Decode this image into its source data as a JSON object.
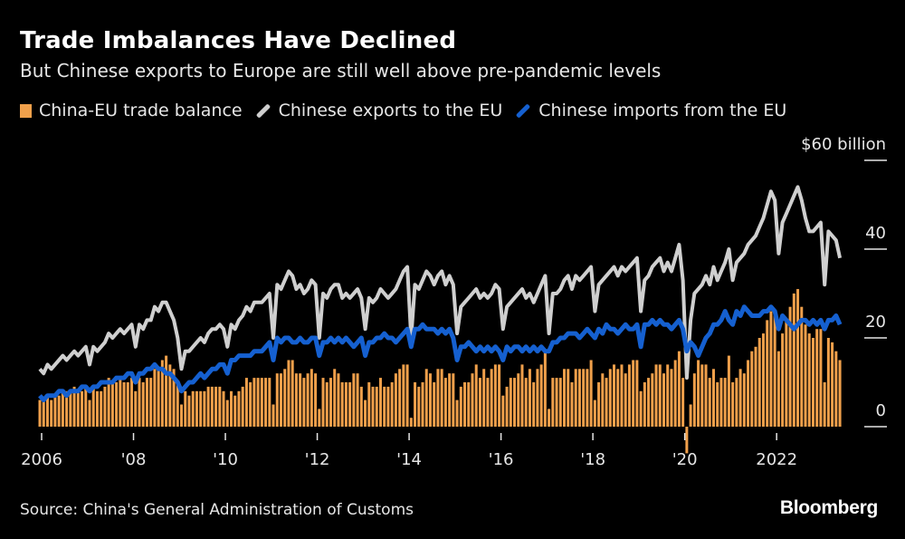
{
  "chart_data": {
    "type": "bar+line",
    "title": "Trade Imbalances Have Declined",
    "subtitle": "But Chinese exports to Europe are still well above pre-pandemic levels",
    "source": "Source: China's General Administration of Customs",
    "brand": "Bloomberg",
    "x_start": "2006-01",
    "x_end": "2023-06",
    "frequency": "monthly",
    "x_tick_labels": [
      "2006",
      "'08",
      "'10",
      "'12",
      "'14",
      "'16",
      "'18",
      "'20",
      "2022"
    ],
    "y_tick_labels": [
      "0",
      "20",
      "40",
      "$60 billion"
    ],
    "y_ticks": [
      0,
      20,
      40,
      60
    ],
    "ylim": [
      -6,
      60
    ],
    "y_axis_position": "right",
    "legend_position": "top",
    "series": [
      {
        "name": "China-EU trade balance",
        "type": "bar",
        "color": "#f0a04b",
        "values": [
          6,
          6,
          7,
          6,
          7,
          7,
          8,
          8,
          8,
          9,
          8,
          8,
          9,
          6,
          9,
          8,
          8,
          9,
          11,
          10,
          10,
          11,
          10,
          10,
          11,
          8,
          11,
          10,
          11,
          11,
          13,
          13,
          15,
          16,
          14,
          13,
          10,
          5,
          8,
          7,
          8,
          8,
          8,
          8,
          9,
          9,
          9,
          9,
          8,
          6,
          8,
          7,
          8,
          9,
          11,
          10,
          11,
          11,
          11,
          11,
          11,
          5,
          12,
          12,
          13,
          15,
          15,
          12,
          12,
          11,
          12,
          13,
          12,
          4,
          11,
          10,
          11,
          13,
          12,
          10,
          10,
          10,
          12,
          12,
          9,
          6,
          10,
          9,
          9,
          11,
          9,
          9,
          10,
          12,
          13,
          14,
          14,
          2,
          10,
          9,
          10,
          13,
          12,
          10,
          13,
          13,
          11,
          12,
          12,
          6,
          9,
          10,
          10,
          12,
          14,
          11,
          13,
          11,
          13,
          14,
          14,
          7,
          9,
          11,
          11,
          12,
          14,
          11,
          13,
          10,
          13,
          14,
          17,
          4,
          11,
          11,
          11,
          13,
          13,
          10,
          13,
          13,
          13,
          13,
          15,
          6,
          10,
          12,
          11,
          13,
          14,
          13,
          14,
          12,
          14,
          15,
          15,
          8,
          10,
          11,
          12,
          14,
          14,
          12,
          14,
          13,
          15,
          17,
          11,
          -6,
          5,
          12,
          15,
          14,
          14,
          11,
          13,
          10,
          11,
          11,
          16,
          10,
          11,
          13,
          12,
          15,
          17,
          18,
          20,
          21,
          24,
          26,
          25,
          17,
          21,
          24,
          27,
          30,
          31,
          27,
          23,
          21,
          20,
          22,
          22,
          10,
          20,
          19,
          17,
          15
        ]
      },
      {
        "name": "Chinese exports to the EU",
        "type": "line",
        "color": "#cfcfcf",
        "values": [
          13,
          12,
          14,
          13,
          14,
          15,
          16,
          15,
          16,
          17,
          16,
          17,
          18,
          14,
          18,
          17,
          18,
          19,
          21,
          20,
          21,
          22,
          21,
          22,
          23,
          18,
          23,
          22,
          24,
          24,
          27,
          26,
          28,
          28,
          26,
          24,
          20,
          13,
          17,
          17,
          18,
          19,
          20,
          19,
          21,
          22,
          22,
          23,
          22,
          18,
          23,
          22,
          24,
          25,
          27,
          26,
          28,
          28,
          28,
          29,
          30,
          20,
          32,
          31,
          33,
          35,
          34,
          31,
          32,
          30,
          31,
          33,
          32,
          20,
          30,
          29,
          31,
          32,
          32,
          29,
          30,
          29,
          30,
          31,
          29,
          22,
          29,
          28,
          29,
          31,
          30,
          29,
          30,
          31,
          33,
          35,
          36,
          20,
          32,
          31,
          33,
          35,
          34,
          32,
          34,
          35,
          32,
          34,
          32,
          21,
          27,
          28,
          29,
          30,
          31,
          29,
          30,
          29,
          30,
          32,
          31,
          22,
          27,
          28,
          29,
          30,
          31,
          29,
          30,
          28,
          30,
          32,
          34,
          21,
          30,
          30,
          31,
          33,
          34,
          31,
          34,
          33,
          34,
          35,
          36,
          26,
          32,
          33,
          34,
          35,
          36,
          34,
          36,
          35,
          36,
          37,
          38,
          26,
          33,
          34,
          36,
          37,
          38,
          35,
          37,
          35,
          38,
          41,
          33,
          11,
          24,
          30,
          31,
          32,
          34,
          32,
          36,
          33,
          35,
          37,
          40,
          33,
          37,
          38,
          39,
          41,
          42,
          43,
          45,
          47,
          50,
          53,
          51,
          39,
          46,
          48,
          50,
          52,
          54,
          51,
          47,
          44,
          44,
          45,
          46,
          32,
          44,
          43,
          42,
          38
        ]
      },
      {
        "name": "Chinese imports from the EU",
        "type": "line",
        "color": "#1560d0",
        "values": [
          7,
          6,
          7,
          7,
          7,
          8,
          8,
          7,
          8,
          8,
          8,
          9,
          9,
          8,
          9,
          9,
          10,
          10,
          10,
          10,
          11,
          11,
          11,
          12,
          12,
          10,
          12,
          12,
          13,
          13,
          14,
          13,
          13,
          12,
          12,
          11,
          10,
          8,
          9,
          10,
          10,
          11,
          12,
          11,
          12,
          13,
          13,
          14,
          14,
          12,
          15,
          15,
          16,
          16,
          16,
          16,
          17,
          17,
          17,
          18,
          19,
          15,
          20,
          19,
          20,
          20,
          19,
          19,
          20,
          19,
          19,
          20,
          20,
          16,
          19,
          19,
          20,
          19,
          20,
          19,
          20,
          19,
          18,
          19,
          20,
          16,
          19,
          19,
          20,
          20,
          21,
          20,
          20,
          19,
          20,
          21,
          22,
          18,
          22,
          22,
          23,
          22,
          22,
          22,
          21,
          22,
          21,
          22,
          20,
          15,
          18,
          18,
          19,
          18,
          17,
          18,
          17,
          18,
          17,
          18,
          17,
          15,
          18,
          17,
          18,
          18,
          17,
          18,
          17,
          18,
          17,
          18,
          17,
          17,
          19,
          19,
          20,
          20,
          21,
          21,
          21,
          20,
          21,
          22,
          21,
          20,
          22,
          21,
          23,
          22,
          22,
          21,
          22,
          23,
          22,
          22,
          23,
          18,
          23,
          23,
          24,
          23,
          24,
          23,
          23,
          22,
          23,
          24,
          22,
          17,
          19,
          18,
          16,
          18,
          20,
          21,
          23,
          23,
          24,
          26,
          24,
          23,
          26,
          25,
          27,
          26,
          25,
          25,
          25,
          26,
          26,
          27,
          26,
          22,
          25,
          24,
          23,
          22,
          23,
          24,
          24,
          23,
          24,
          23,
          24,
          22,
          24,
          24,
          25,
          23
        ]
      }
    ]
  }
}
